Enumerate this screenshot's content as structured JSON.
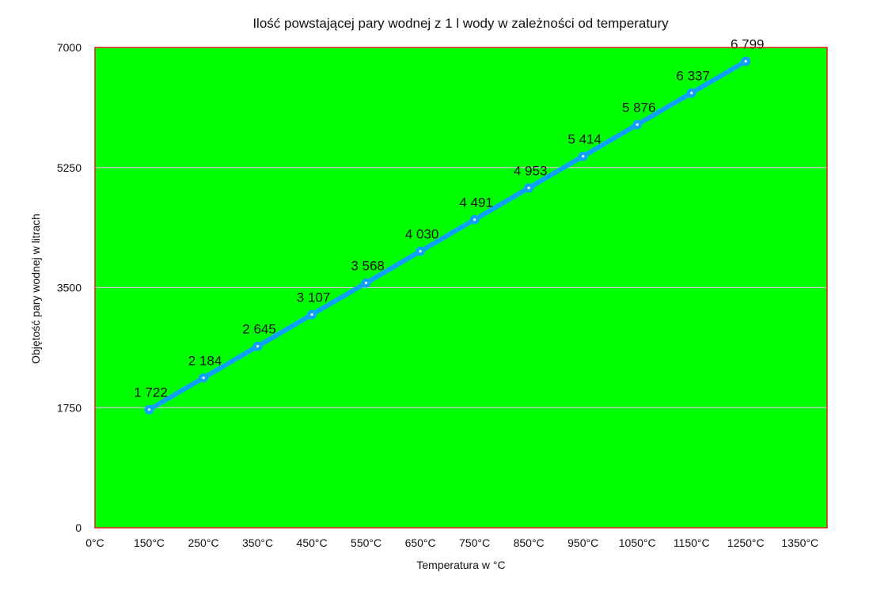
{
  "chart_data": {
    "type": "line",
    "title": "Ilość powstającej pary wodnej z 1 l wody w zależności od temperatury",
    "xlabel": "Temperatura w °C",
    "ylabel": "Objętość pary wodnej w litrach",
    "x_ticks": [
      "0°C",
      "150°C",
      "250°C",
      "350°C",
      "450°C",
      "550°C",
      "650°C",
      "750°C",
      "850°C",
      "950°C",
      "1050°C",
      "1150°C",
      "1250°C",
      "1350°C"
    ],
    "y_ticks": [
      0,
      1750,
      3500,
      5250,
      7000
    ],
    "ylim": [
      0,
      7000
    ],
    "grid": "horizontal",
    "legend": "none",
    "series": [
      {
        "x": [
          "150°C",
          "250°C",
          "350°C",
          "450°C",
          "550°C",
          "650°C",
          "750°C",
          "850°C",
          "950°C",
          "1050°C",
          "1150°C",
          "1250°C"
        ],
        "values": [
          1722,
          2184,
          2645,
          3107,
          3568,
          4030,
          4491,
          4953,
          5414,
          5876,
          6337,
          6799
        ],
        "labels": [
          "1 722",
          "2 184",
          "2 645",
          "3 107",
          "3 568",
          "4 030",
          "4 491",
          "4 953",
          "5 414",
          "5 876",
          "6 337",
          "6 799"
        ]
      }
    ],
    "colors": {
      "plot_background": "#00ff00",
      "plot_border": "#e8191c",
      "line": "#0fa0ff",
      "grid": "#c8c8c8"
    }
  }
}
